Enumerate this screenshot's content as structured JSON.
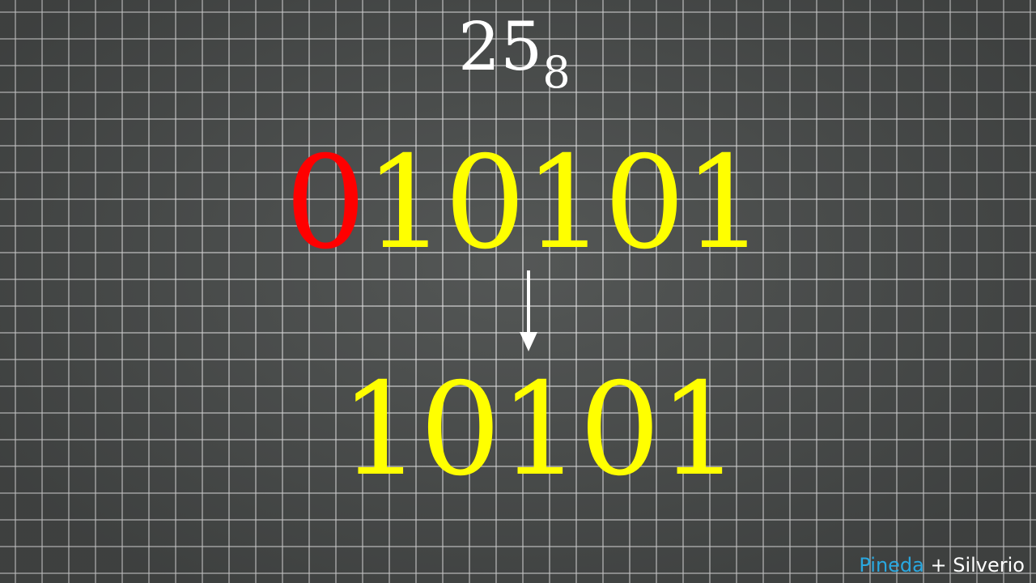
{
  "slide": {
    "base_number": "25",
    "base_subscript": "8",
    "binary_leading": "0",
    "binary_rest": "10101",
    "binary_result": "10101",
    "arrow_icon": "down-arrow-icon"
  },
  "credit": {
    "first": "Pineda",
    "separator": " + ",
    "second": "Silverio"
  },
  "colors": {
    "board": "#4b4e4d",
    "grid_lines": "#e6e6e6",
    "highlight_zero": "#ff0000",
    "binary_digits": "#ffff00",
    "base_number": "#ffffff",
    "credit_first": "#29a8e0",
    "credit_second": "#ffffff"
  }
}
